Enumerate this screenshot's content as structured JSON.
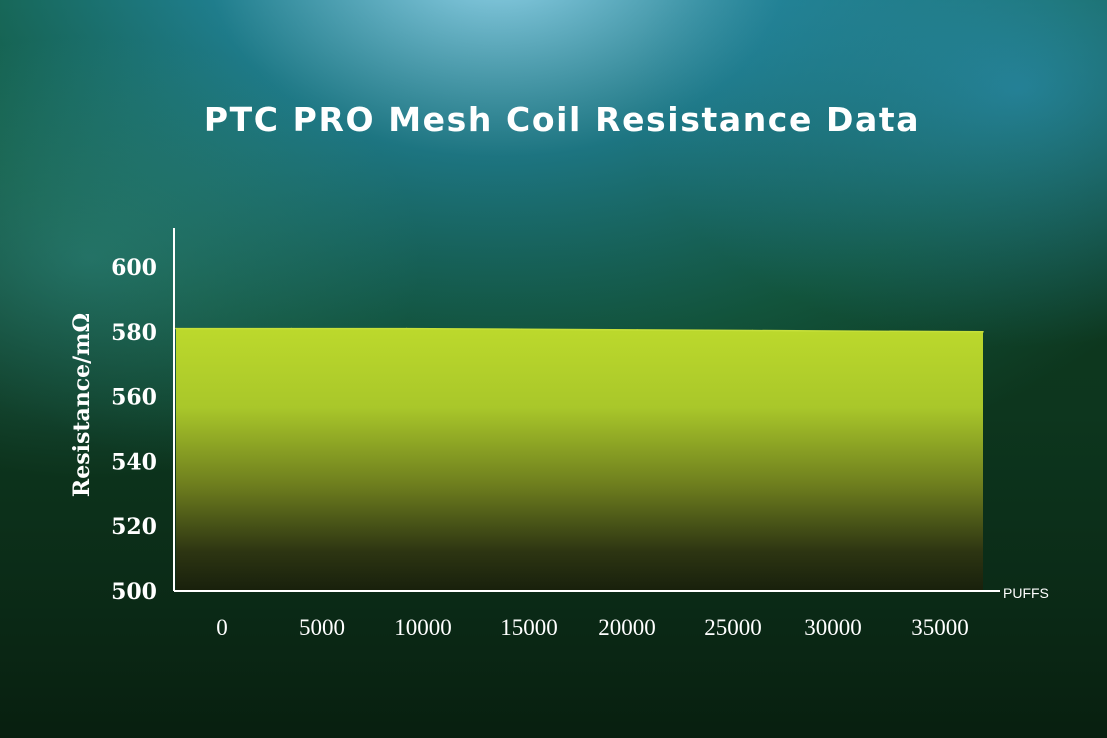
{
  "chart_data": {
    "type": "area",
    "title": "PTC PRO Mesh Coil Resistance Data",
    "ylabel": "Resistance/mΩ",
    "xlabel": "PUFFS",
    "x": [
      0,
      5000,
      10000,
      15000,
      20000,
      25000,
      30000,
      35000
    ],
    "xticks": [
      "0",
      "5000",
      "10000",
      "15000",
      "20000",
      "25000",
      "30000",
      "35000"
    ],
    "values": [
      581,
      581,
      581,
      580.8,
      580.6,
      580.4,
      580.2,
      580
    ],
    "yticks": [
      "500",
      "520",
      "540",
      "560",
      "580",
      "600"
    ],
    "ylim": [
      500,
      600
    ],
    "grid": false,
    "colors": {
      "area_top": "#bcd92c",
      "area_bottom": "#1c2a10",
      "axis": "#ffffff",
      "text": "#ffffff"
    }
  }
}
